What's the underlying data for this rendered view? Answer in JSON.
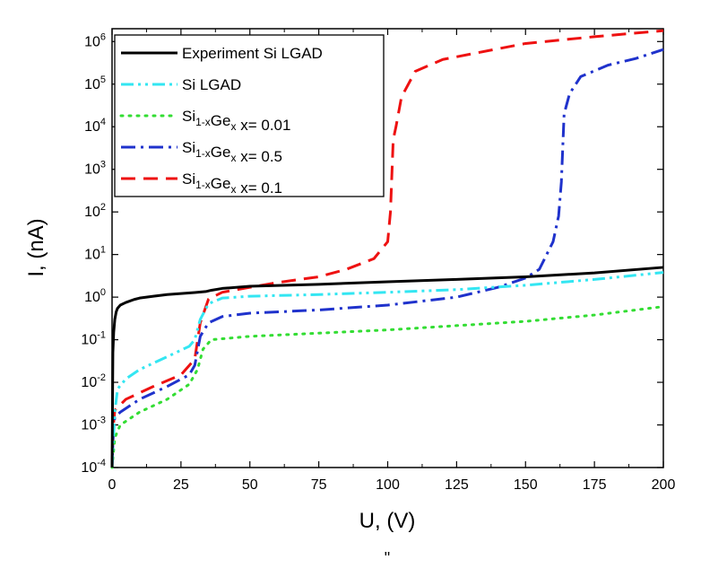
{
  "chart_data": {
    "type": "line",
    "title": "",
    "xlabel": "U, (V)",
    "ylabel": "I, (nA)",
    "xlim": [
      0,
      200
    ],
    "ylim": [
      0.0001,
      2000000
    ],
    "yscale": "log",
    "x_ticks": [
      0,
      25,
      50,
      75,
      100,
      125,
      150,
      175,
      200
    ],
    "y_tick_exponents": [
      -4,
      -3,
      -2,
      -1,
      0,
      1,
      2,
      3,
      4,
      5,
      6
    ],
    "grid": false,
    "legend_position": "top-left",
    "stray_mark": "\"",
    "series": [
      {
        "name": "Experiment Si LGAD",
        "legend_parts": [
          {
            "t": "Experiment Si LGAD",
            "s": "n"
          }
        ],
        "color": "#000000",
        "style": "solid",
        "points": [
          [
            0,
            0.0001
          ],
          [
            0.3,
            0.05
          ],
          [
            0.6,
            0.15
          ],
          [
            1,
            0.3
          ],
          [
            1.5,
            0.45
          ],
          [
            2,
            0.55
          ],
          [
            3,
            0.65
          ],
          [
            5,
            0.75
          ],
          [
            8,
            0.88
          ],
          [
            10,
            0.95
          ],
          [
            15,
            1.05
          ],
          [
            20,
            1.15
          ],
          [
            30,
            1.28
          ],
          [
            34,
            1.35
          ],
          [
            36,
            1.45
          ],
          [
            40,
            1.6
          ],
          [
            50,
            1.8
          ],
          [
            75,
            2.0
          ],
          [
            100,
            2.3
          ],
          [
            125,
            2.6
          ],
          [
            150,
            3.0
          ],
          [
            175,
            3.7
          ],
          [
            200,
            5.0
          ]
        ]
      },
      {
        "name": "Si LGAD",
        "legend_parts": [
          {
            "t": "Si LGAD",
            "s": "n"
          }
        ],
        "color": "#33e6f2",
        "style": "dash-dot-dot",
        "points": [
          [
            0,
            0.0001
          ],
          [
            0.5,
            0.0005
          ],
          [
            1,
            0.002
          ],
          [
            2,
            0.007
          ],
          [
            5,
            0.012
          ],
          [
            10,
            0.02
          ],
          [
            20,
            0.04
          ],
          [
            28,
            0.07
          ],
          [
            30,
            0.1
          ],
          [
            32,
            0.3
          ],
          [
            35,
            0.7
          ],
          [
            40,
            0.95
          ],
          [
            50,
            1.05
          ],
          [
            75,
            1.15
          ],
          [
            100,
            1.3
          ],
          [
            125,
            1.5
          ],
          [
            150,
            1.9
          ],
          [
            175,
            2.6
          ],
          [
            200,
            3.8
          ]
        ]
      },
      {
        "name": "Si1-xGex x= 0.01",
        "legend_parts": [
          {
            "t": "Si",
            "s": "n"
          },
          {
            "t": "1-x",
            "s": "sub"
          },
          {
            "t": "Ge",
            "s": "n"
          },
          {
            "t": "x",
            "s": "sub"
          },
          {
            "t": " x= 0.01",
            "s": "n"
          }
        ],
        "color": "#33dd33",
        "style": "dotted",
        "points": [
          [
            0,
            0.0001
          ],
          [
            1,
            0.0005
          ],
          [
            3,
            0.001
          ],
          [
            10,
            0.002
          ],
          [
            20,
            0.004
          ],
          [
            28,
            0.009
          ],
          [
            31,
            0.02
          ],
          [
            33,
            0.06
          ],
          [
            36,
            0.1
          ],
          [
            50,
            0.12
          ],
          [
            100,
            0.17
          ],
          [
            150,
            0.27
          ],
          [
            175,
            0.38
          ],
          [
            200,
            0.6
          ]
        ]
      },
      {
        "name": "Si1-xGex x= 0.5",
        "legend_parts": [
          {
            "t": "Si",
            "s": "n"
          },
          {
            "t": "1-x",
            "s": "sub"
          },
          {
            "t": "Ge",
            "s": "n"
          },
          {
            "t": "x",
            "s": "sub"
          },
          {
            "t": " x= 0.5",
            "s": "n"
          }
        ],
        "color": "#1f32cc",
        "style": "dash-dot",
        "points": [
          [
            0,
            0.0001
          ],
          [
            0.5,
            0.0008
          ],
          [
            1,
            0.0015
          ],
          [
            3,
            0.002
          ],
          [
            10,
            0.004
          ],
          [
            20,
            0.008
          ],
          [
            28,
            0.015
          ],
          [
            30,
            0.025
          ],
          [
            32,
            0.12
          ],
          [
            35,
            0.25
          ],
          [
            40,
            0.35
          ],
          [
            50,
            0.42
          ],
          [
            75,
            0.5
          ],
          [
            100,
            0.65
          ],
          [
            125,
            1.0
          ],
          [
            140,
            1.7
          ],
          [
            150,
            2.8
          ],
          [
            155,
            4.5
          ],
          [
            160,
            20
          ],
          [
            162,
            80
          ],
          [
            163,
            500
          ],
          [
            164,
            20000
          ],
          [
            166,
            60000
          ],
          [
            170,
            150000
          ],
          [
            180,
            280000
          ],
          [
            190,
            400000
          ],
          [
            200,
            650000
          ]
        ]
      },
      {
        "name": "Si1-xGex x= 0.1",
        "legend_parts": [
          {
            "t": "Si",
            "s": "n"
          },
          {
            "t": "1-x",
            "s": "sub"
          },
          {
            "t": "Ge",
            "s": "n"
          },
          {
            "t": "x",
            "s": "sub"
          },
          {
            "t": " x= 0.1",
            "s": "n"
          }
        ],
        "color": "#ee1111",
        "style": "dashed",
        "points": [
          [
            0,
            0.0001
          ],
          [
            0.5,
            0.001
          ],
          [
            1,
            0.0022
          ],
          [
            5,
            0.004
          ],
          [
            15,
            0.008
          ],
          [
            25,
            0.015
          ],
          [
            30,
            0.035
          ],
          [
            32,
            0.25
          ],
          [
            35,
            0.9
          ],
          [
            40,
            1.3
          ],
          [
            50,
            1.7
          ],
          [
            60,
            2.2
          ],
          [
            75,
            3.0
          ],
          [
            85,
            4.5
          ],
          [
            95,
            8.0
          ],
          [
            100,
            20
          ],
          [
            101,
            100
          ],
          [
            102,
            5000
          ],
          [
            103,
            10000
          ],
          [
            105,
            50000
          ],
          [
            110,
            200000
          ],
          [
            120,
            380000
          ],
          [
            150,
            900000
          ],
          [
            175,
            1300000
          ],
          [
            200,
            1800000
          ]
        ]
      }
    ]
  }
}
